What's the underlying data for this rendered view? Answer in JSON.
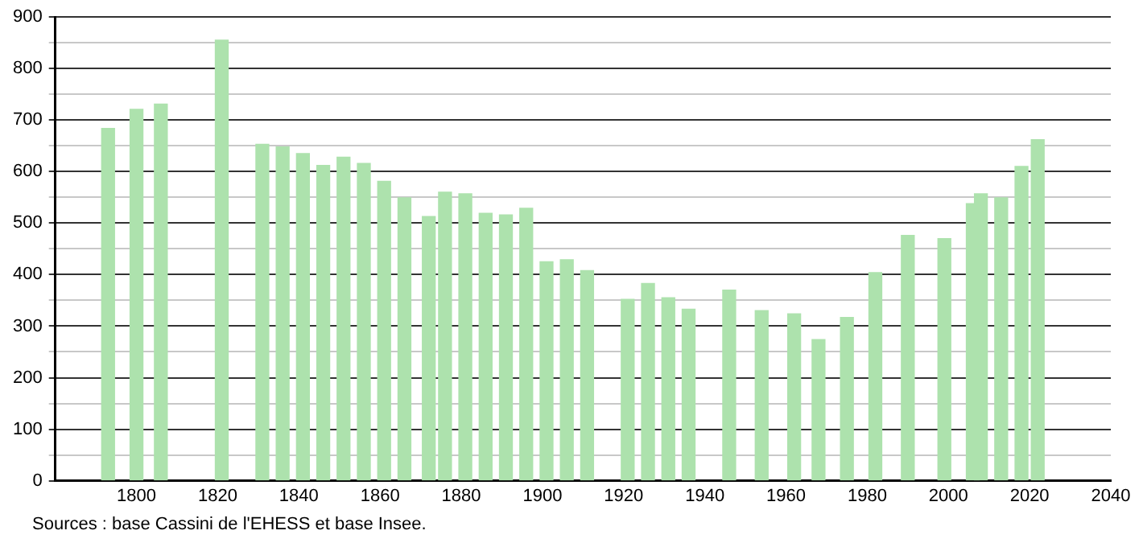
{
  "chart_data": {
    "type": "bar",
    "x": [
      1793,
      1800,
      1806,
      1821,
      1831,
      1836,
      1841,
      1846,
      1851,
      1856,
      1861,
      1866,
      1872,
      1876,
      1881,
      1886,
      1891,
      1896,
      1901,
      1906,
      1911,
      1921,
      1926,
      1931,
      1936,
      1946,
      1954,
      1962,
      1968,
      1975,
      1982,
      1990,
      1999,
      2006,
      2008,
      2013,
      2018,
      2022
    ],
    "values": [
      684,
      721,
      731,
      855,
      653,
      648,
      635,
      612,
      628,
      616,
      581,
      549,
      513,
      560,
      557,
      519,
      516,
      529,
      425,
      429,
      408,
      352,
      383,
      355,
      333,
      370,
      330,
      324,
      274,
      317,
      404,
      476,
      470,
      538,
      557,
      549,
      610,
      662
    ],
    "color": "#ade2ad",
    "xlim": [
      1780,
      2040
    ],
    "xticks": [
      1800,
      1820,
      1840,
      1860,
      1880,
      1900,
      1920,
      1940,
      1960,
      1980,
      2000,
      2020,
      2040
    ],
    "ylim": [
      0,
      900
    ],
    "yticks": [
      0,
      {
        "value": 50,
        "label": null
      },
      100,
      {
        "value": 150,
        "label": null
      },
      200,
      {
        "value": 250,
        "label": null
      },
      300,
      {
        "value": 350,
        "label": null
      },
      400,
      {
        "value": 450,
        "label": null
      },
      500,
      {
        "value": 550,
        "label": null
      },
      600,
      {
        "value": 650,
        "label": null
      },
      700,
      {
        "value": 750,
        "label": null
      },
      800,
      {
        "value": 850,
        "label": null
      },
      900
    ],
    "grid": "y",
    "annotations": [
      "Sources : base Cassini de l'EHESS et base Insee."
    ]
  }
}
